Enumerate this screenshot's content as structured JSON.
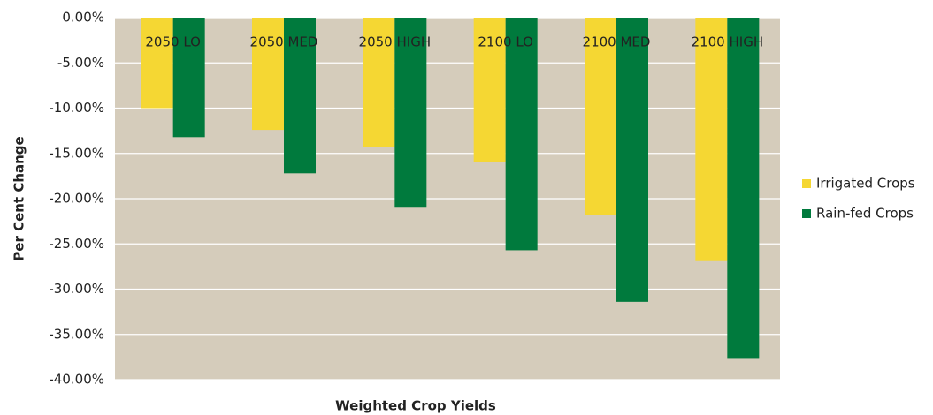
{
  "chart_data": {
    "type": "bar",
    "categories": [
      "2050 LO",
      "2050 MED",
      "2050 HIGH",
      "2100 LO",
      "2100 MED",
      "2100 HIGH"
    ],
    "series": [
      {
        "name": "Irrigated Crops",
        "color": "#f5d733",
        "values": [
          -10.0,
          -12.4,
          -14.3,
          -15.9,
          -21.8,
          -26.9
        ]
      },
      {
        "name": "Rain-fed Crops",
        "color": "#007a3d",
        "values": [
          -13.2,
          -17.2,
          -21.0,
          -25.7,
          -31.4,
          -37.7
        ]
      }
    ],
    "xlabel": "Weighted Crop Yields",
    "ylabel": "Per Cent Change",
    "ylim": [
      -40,
      0
    ],
    "yticks": [
      {
        "value": 0,
        "label": "0.00%"
      },
      {
        "value": -5,
        "label": "-5.00%"
      },
      {
        "value": -10,
        "label": "-10.00%"
      },
      {
        "value": -15,
        "label": "-15.00%"
      },
      {
        "value": -20,
        "label": "-20.00%"
      },
      {
        "value": -25,
        "label": "-25.00%"
      },
      {
        "value": -30,
        "label": "-30.00%"
      },
      {
        "value": -35,
        "label": "-35.00%"
      },
      {
        "value": -40,
        "label": "-40.00%"
      }
    ],
    "grid": true,
    "legend": "right"
  }
}
